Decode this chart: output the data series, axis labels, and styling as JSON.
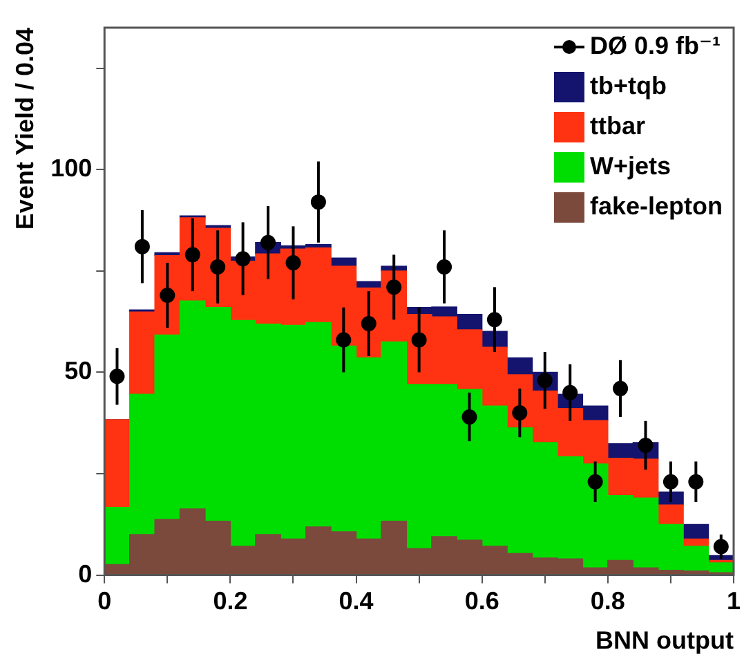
{
  "chart_data": {
    "type": "bar",
    "xlabel": "BNN output",
    "ylabel": "Event Yield / 0.04",
    "stacked": true,
    "grid": false,
    "legend": "top right",
    "x": [
      0.02,
      0.06,
      0.1,
      0.14,
      0.18,
      0.22,
      0.26,
      0.3,
      0.34,
      0.38,
      0.42,
      0.46,
      0.5,
      0.54,
      0.58,
      0.62,
      0.66,
      0.7,
      0.74,
      0.78,
      0.82,
      0.86,
      0.9,
      0.94,
      0.98
    ],
    "xlim": [
      0,
      1
    ],
    "xticks": [
      0,
      {
        "value": 0.1,
        "label": null
      },
      0.2,
      {
        "value": 0.3,
        "label": null
      },
      0.4,
      {
        "value": 0.5,
        "label": null
      },
      0.6,
      {
        "value": 0.7,
        "label": null
      },
      0.8,
      {
        "value": 0.9,
        "label": null
      },
      1
    ],
    "ylim": [
      0,
      135
    ],
    "yticks": [
      0,
      {
        "value": 25,
        "label": null
      },
      50,
      {
        "value": 75,
        "label": null
      },
      100,
      {
        "value": 125,
        "label": null
      }
    ],
    "series": [
      {
        "name": "fake-lepton",
        "color": "#7b4a3c",
        "values": [
          2.6,
          10,
          13.7,
          16.3,
          13.3,
          7.1,
          10,
          8.9,
          11.9,
          10.7,
          8.9,
          13.3,
          6.5,
          9.5,
          8.6,
          7.1,
          5.3,
          4.2,
          4,
          1.8,
          3.6,
          1.8,
          1.2,
          1,
          0.6
        ]
      },
      {
        "name": "W+jets",
        "color": "#00dd00",
        "values": [
          14.1,
          34.6,
          45.5,
          51.3,
          52.7,
          55.7,
          51.9,
          52.7,
          50.4,
          45.8,
          44.7,
          44.2,
          40.5,
          37.5,
          37.2,
          34.6,
          31,
          28.5,
          25.2,
          25.6,
          16,
          17.2,
          11.3,
          6.1,
          2.4
        ]
      },
      {
        "name": "ttbar",
        "color": "#ff3311",
        "values": [
          21.6,
          20.3,
          19.6,
          20.5,
          19.5,
          14.6,
          17.3,
          18.8,
          18.4,
          19.7,
          17.2,
          17.5,
          17.3,
          16.7,
          14.7,
          14.5,
          13.1,
          12.7,
          11.9,
          10.7,
          9.2,
          9.6,
          4.8,
          1.8,
          0.6
        ]
      },
      {
        "name": "tb+tqb",
        "color": "#14146e",
        "values": [
          0,
          0.5,
          0.7,
          0.5,
          0.7,
          1.1,
          2.8,
          0.8,
          0.8,
          2,
          1.6,
          1.2,
          1.7,
          2.4,
          3.8,
          3.9,
          4.2,
          4.6,
          3.5,
          3.6,
          3.6,
          4.1,
          3.2,
          3.6,
          1.2
        ]
      },
      {
        "name": "DØ 0.9 fb⁻¹",
        "type": "scatter",
        "color": "#000000",
        "marker": "circle",
        "x": [
          0.02,
          0.06,
          0.1,
          0.14,
          0.18,
          0.22,
          0.26,
          0.3,
          0.34,
          0.38,
          0.42,
          0.46,
          0.5,
          0.54,
          0.58,
          0.62,
          0.66,
          0.7,
          0.74,
          0.78,
          0.82,
          0.86,
          0.9,
          0.94,
          0.98
        ],
        "values": [
          49,
          81,
          69,
          79,
          76,
          78,
          82,
          77,
          92,
          58,
          62,
          71,
          58,
          76,
          39,
          63,
          40,
          48,
          45,
          23,
          46,
          32,
          23,
          23,
          7
        ],
        "errors": [
          7,
          9,
          8,
          9,
          9,
          9,
          9,
          9,
          10,
          8,
          8,
          8,
          8,
          9,
          6,
          8,
          6,
          7,
          7,
          5,
          7,
          6,
          5,
          5,
          3
        ]
      }
    ]
  }
}
